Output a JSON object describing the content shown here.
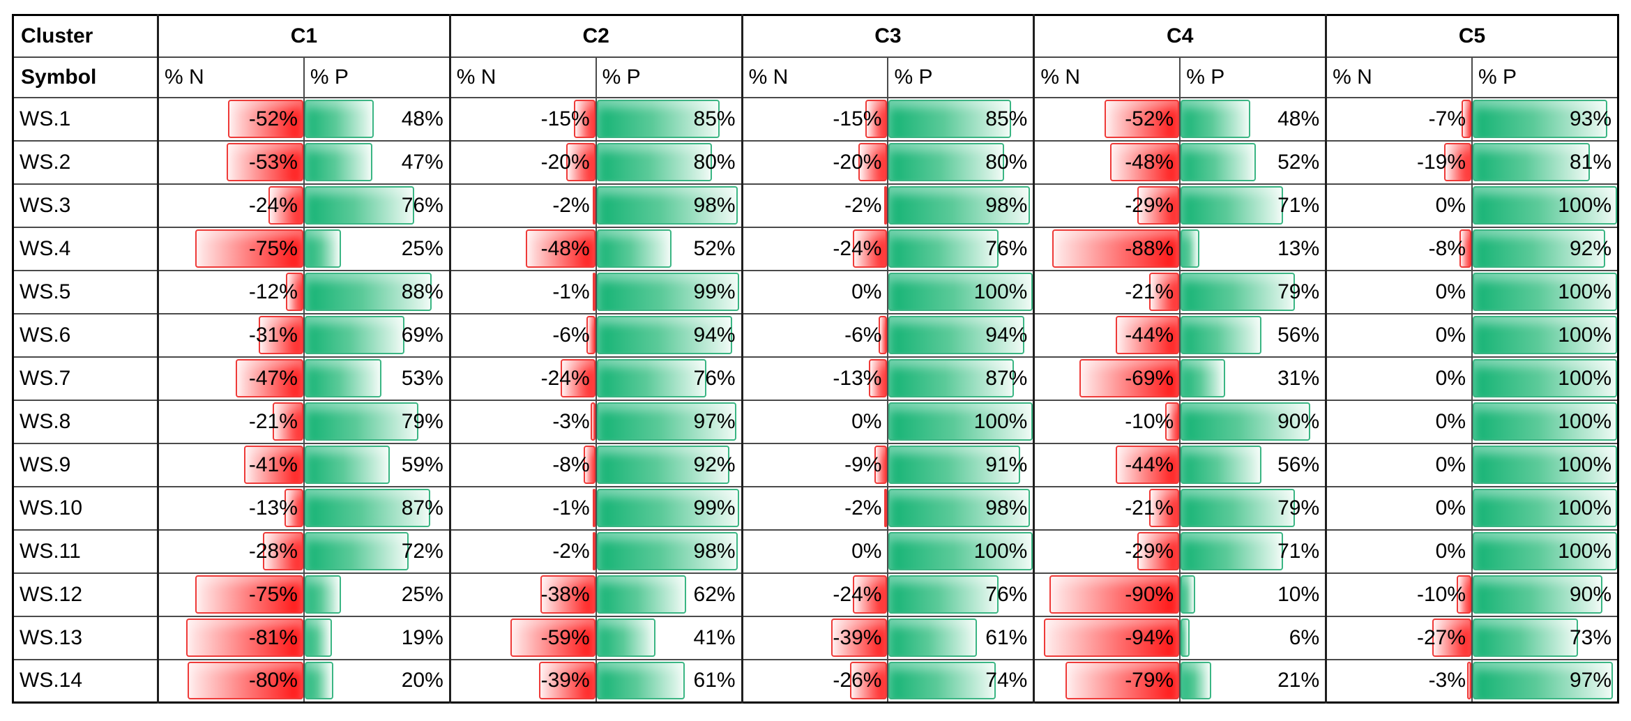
{
  "chart_data": {
    "type": "table",
    "corner": {
      "row1": "Cluster",
      "row2": "Symbol"
    },
    "clusters": [
      "C1",
      "C2",
      "C3",
      "C4",
      "C5"
    ],
    "subcolumns": [
      "% N",
      "% P"
    ],
    "unit": "%",
    "value_range_note": "data bars scaled 0 to 100 percent of cell width; % N bars red anchored right, % P bars green anchored left",
    "rows": [
      {
        "symbol": "WS.1",
        "cells": [
          [
            -52,
            48
          ],
          [
            -15,
            85
          ],
          [
            -15,
            85
          ],
          [
            -52,
            48
          ],
          [
            -7,
            93
          ]
        ]
      },
      {
        "symbol": "WS.2",
        "cells": [
          [
            -53,
            47
          ],
          [
            -20,
            80
          ],
          [
            -20,
            80
          ],
          [
            -48,
            52
          ],
          [
            -19,
            81
          ]
        ]
      },
      {
        "symbol": "WS.3",
        "cells": [
          [
            -24,
            76
          ],
          [
            -2,
            98
          ],
          [
            -2,
            98
          ],
          [
            -29,
            71
          ],
          [
            0,
            100
          ]
        ]
      },
      {
        "symbol": "WS.4",
        "cells": [
          [
            -75,
            25
          ],
          [
            -48,
            52
          ],
          [
            -24,
            76
          ],
          [
            -88,
            13
          ],
          [
            -8,
            92
          ]
        ]
      },
      {
        "symbol": "WS.5",
        "cells": [
          [
            -12,
            88
          ],
          [
            -1,
            99
          ],
          [
            0,
            100
          ],
          [
            -21,
            79
          ],
          [
            0,
            100
          ]
        ]
      },
      {
        "symbol": "WS.6",
        "cells": [
          [
            -31,
            69
          ],
          [
            -6,
            94
          ],
          [
            -6,
            94
          ],
          [
            -44,
            56
          ],
          [
            0,
            100
          ]
        ]
      },
      {
        "symbol": "WS.7",
        "cells": [
          [
            -47,
            53
          ],
          [
            -24,
            76
          ],
          [
            -13,
            87
          ],
          [
            -69,
            31
          ],
          [
            0,
            100
          ]
        ]
      },
      {
        "symbol": "WS.8",
        "cells": [
          [
            -21,
            79
          ],
          [
            -3,
            97
          ],
          [
            0,
            100
          ],
          [
            -10,
            90
          ],
          [
            0,
            100
          ]
        ]
      },
      {
        "symbol": "WS.9",
        "cells": [
          [
            -41,
            59
          ],
          [
            -8,
            92
          ],
          [
            -9,
            91
          ],
          [
            -44,
            56
          ],
          [
            0,
            100
          ]
        ]
      },
      {
        "symbol": "WS.10",
        "cells": [
          [
            -13,
            87
          ],
          [
            -1,
            99
          ],
          [
            -2,
            98
          ],
          [
            -21,
            79
          ],
          [
            0,
            100
          ]
        ]
      },
      {
        "symbol": "WS.11",
        "cells": [
          [
            -28,
            72
          ],
          [
            -2,
            98
          ],
          [
            0,
            100
          ],
          [
            -29,
            71
          ],
          [
            0,
            100
          ]
        ]
      },
      {
        "symbol": "WS.12",
        "cells": [
          [
            -75,
            25
          ],
          [
            -38,
            62
          ],
          [
            -24,
            76
          ],
          [
            -90,
            10
          ],
          [
            -10,
            90
          ]
        ]
      },
      {
        "symbol": "WS.13",
        "cells": [
          [
            -81,
            19
          ],
          [
            -59,
            41
          ],
          [
            -39,
            61
          ],
          [
            -94,
            6
          ],
          [
            -27,
            73
          ]
        ]
      },
      {
        "symbol": "WS.14",
        "cells": [
          [
            -80,
            20
          ],
          [
            -39,
            61
          ],
          [
            -26,
            74
          ],
          [
            -79,
            21
          ],
          [
            -3,
            97
          ]
        ]
      }
    ]
  },
  "colors": {
    "negative_bar_solid": "#ff1010",
    "negative_bar_mid": "#ff7070",
    "negative_bar_light": "#ffeded",
    "negative_bar_border": "#ee3a38",
    "positive_bar_solid": "#14b374",
    "positive_bar_mid": "#5bca99",
    "positive_bar_light": "#eefaf4",
    "positive_bar_border": "#3ab583",
    "grid_line": "#4a4a4a",
    "group_line": "#1f1f1f",
    "outer_border": "#000000",
    "text": "#000000",
    "background": "#ffffff"
  }
}
